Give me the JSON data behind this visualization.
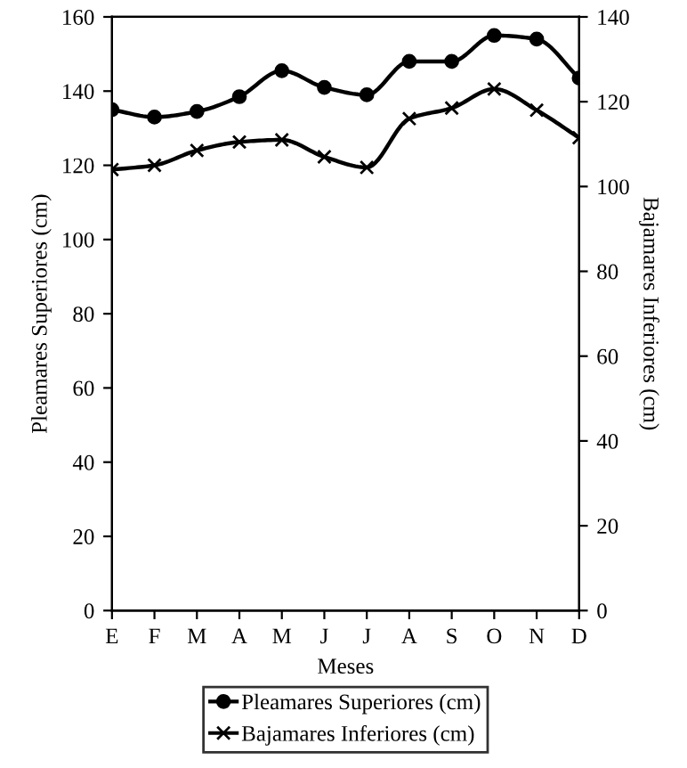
{
  "chart_data": {
    "type": "line",
    "xlabel": "Meses",
    "ylabel": "Pleamares Superiores (cm)",
    "y2label": "Bajamares Inferiores (cm)",
    "categories": [
      "E",
      "F",
      "M",
      "A",
      "M",
      "J",
      "J",
      "A",
      "S",
      "O",
      "N",
      "D"
    ],
    "series": [
      {
        "name": "Pleamares Superiores (cm)",
        "color": "#000000",
        "marker": "circle",
        "values": [
          135,
          133,
          134.5,
          138.5,
          145.5,
          141,
          139,
          148,
          148,
          155,
          154,
          143.5
        ]
      },
      {
        "name": "Bajamares Inferiores (cm)",
        "color": "#000000",
        "marker": "cross",
        "axis": "y2",
        "values": [
          104,
          105,
          108.5,
          110.5,
          111,
          107,
          104.5,
          116,
          118.5,
          123,
          118,
          111.5
        ]
      }
    ],
    "ylim": [
      0,
      160
    ],
    "yticks": [
      0,
      20,
      40,
      60,
      80,
      100,
      120,
      140,
      160
    ],
    "y2lim": [
      0,
      140
    ],
    "y2ticks": [
      0,
      20,
      40,
      60,
      80,
      100,
      120,
      140
    ],
    "grid": false,
    "legend": "bottom",
    "line_style": "solid"
  }
}
